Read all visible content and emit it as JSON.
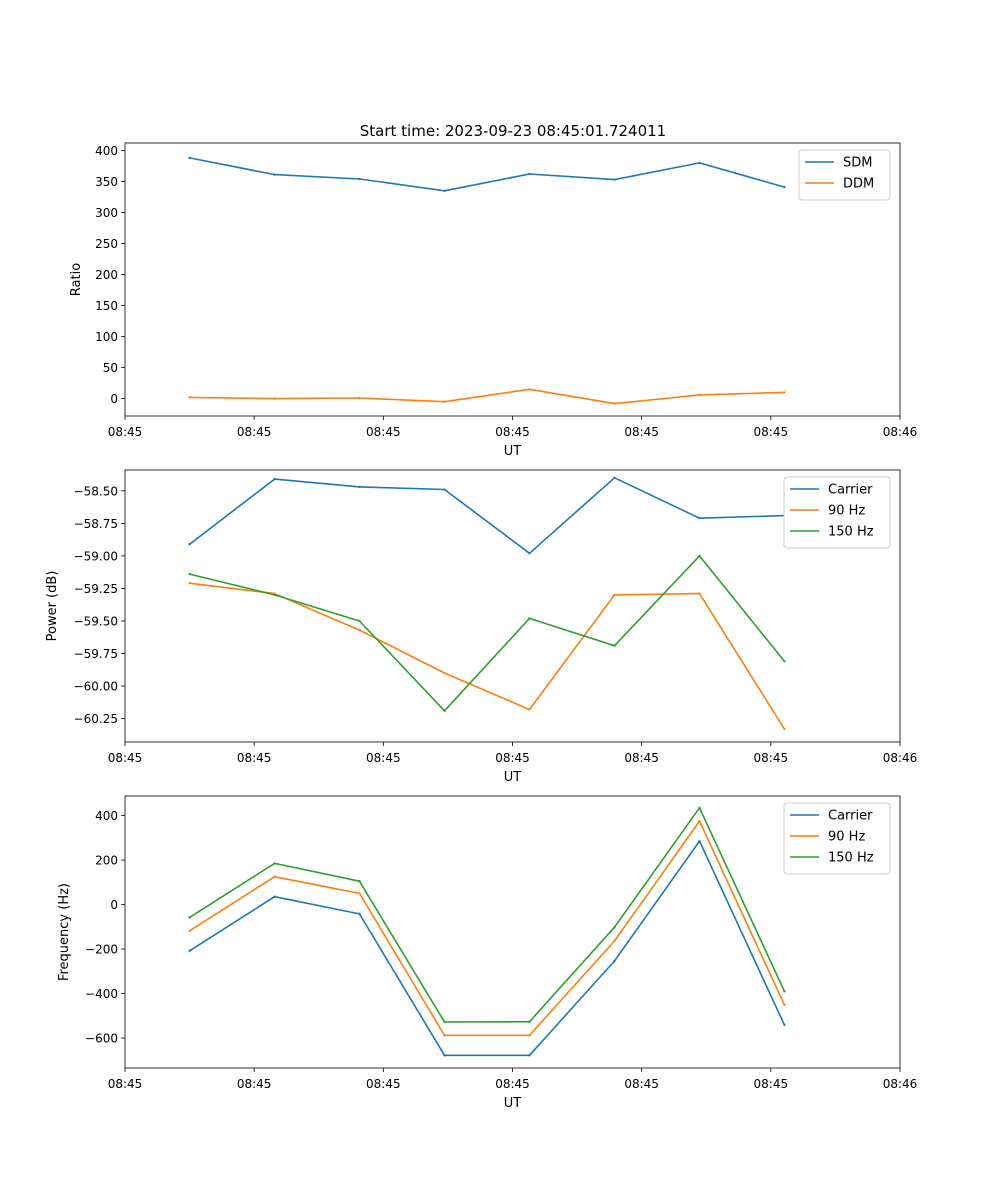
{
  "figure_title": "Start time: 2023-09-23 08:45:01.724011",
  "chart_data": [
    {
      "type": "line",
      "title": "Start time: 2023-09-23 08:45:01.724011",
      "xlabel": "UT",
      "ylabel": "Ratio",
      "x_tick_labels": [
        "08:45",
        "08:45",
        "08:45",
        "08:45",
        "08:45",
        "08:45",
        "08:46"
      ],
      "x_ticks_index": [
        -0.76,
        0.76,
        2.28,
        3.8,
        5.32,
        6.84,
        8.36
      ],
      "x": [
        0,
        1,
        2,
        3,
        4,
        5,
        6,
        7
      ],
      "xlim": [
        -0.76,
        8.36
      ],
      "ylim": [
        -28,
        412
      ],
      "y_ticks": [
        0,
        50,
        100,
        150,
        200,
        250,
        300,
        350,
        400
      ],
      "y_tick_labels": [
        "0",
        "50",
        "100",
        "150",
        "200",
        "250",
        "300",
        "350",
        "400"
      ],
      "legend_position": "top-right",
      "series": [
        {
          "name": "SDM",
          "color": "#1f77b4",
          "values": [
            388,
            361,
            354,
            335,
            362,
            353,
            380,
            341
          ]
        },
        {
          "name": "DDM",
          "color": "#ff7f0e",
          "values": [
            2,
            0,
            1,
            -5,
            15,
            -8,
            6,
            10
          ]
        }
      ]
    },
    {
      "type": "line",
      "title": "",
      "xlabel": "UT",
      "ylabel": "Power (dB)",
      "x_tick_labels": [
        "08:45",
        "08:45",
        "08:45",
        "08:45",
        "08:45",
        "08:45",
        "08:46"
      ],
      "x_ticks_index": [
        -0.76,
        0.76,
        2.28,
        3.8,
        5.32,
        6.84,
        8.36
      ],
      "x": [
        0,
        1,
        2,
        3,
        4,
        5,
        6,
        7
      ],
      "xlim": [
        -0.76,
        8.36
      ],
      "ylim": [
        -60.43,
        -58.34
      ],
      "y_ticks": [
        -58.5,
        -58.75,
        -59.0,
        -59.25,
        -59.5,
        -59.75,
        -60.0,
        -60.25
      ],
      "y_tick_labels": [
        "−58.50",
        "−58.75",
        "−59.00",
        "−59.25",
        "−59.50",
        "−59.75",
        "−60.00",
        "−60.25"
      ],
      "legend_position": "top-right",
      "series": [
        {
          "name": "Carrier",
          "color": "#1f77b4",
          "values": [
            -58.91,
            -58.41,
            -58.47,
            -58.49,
            -58.98,
            -58.4,
            -58.71,
            -58.69
          ]
        },
        {
          "name": "90 Hz",
          "color": "#ff7f0e",
          "values": [
            -59.21,
            -59.29,
            -59.57,
            -59.9,
            -60.18,
            -59.3,
            -59.29,
            -60.33
          ]
        },
        {
          "name": "150 Hz",
          "color": "#2ca02c",
          "values": [
            -59.14,
            -59.3,
            -59.5,
            -60.19,
            -59.48,
            -59.69,
            -59.0,
            -59.81
          ]
        }
      ]
    },
    {
      "type": "line",
      "title": "",
      "xlabel": "UT",
      "ylabel": "Frequency (Hz)",
      "x_tick_labels": [
        "08:45",
        "08:45",
        "08:45",
        "08:45",
        "08:45",
        "08:45",
        "08:46"
      ],
      "x_ticks_index": [
        -0.76,
        0.76,
        2.28,
        3.8,
        5.32,
        6.84,
        8.36
      ],
      "x": [
        0,
        1,
        2,
        3,
        4,
        5,
        6,
        7
      ],
      "xlim": [
        -0.76,
        8.36
      ],
      "ylim": [
        -735,
        488
      ],
      "y_ticks": [
        400,
        200,
        0,
        -200,
        -400,
        -600
      ],
      "y_tick_labels": [
        "400",
        "200",
        "0",
        "−200",
        "−400",
        "−600"
      ],
      "legend_position": "top-right",
      "series": [
        {
          "name": "Carrier",
          "color": "#1f77b4",
          "values": [
            -208,
            35,
            -42,
            -678,
            -678,
            -254,
            285,
            -541
          ]
        },
        {
          "name": "90 Hz",
          "color": "#ff7f0e",
          "values": [
            -118,
            125,
            50,
            -588,
            -588,
            -164,
            375,
            -451
          ]
        },
        {
          "name": "150 Hz",
          "color": "#2ca02c",
          "values": [
            -58,
            185,
            105,
            -528,
            -527,
            -102,
            435,
            -390
          ]
        }
      ]
    }
  ]
}
